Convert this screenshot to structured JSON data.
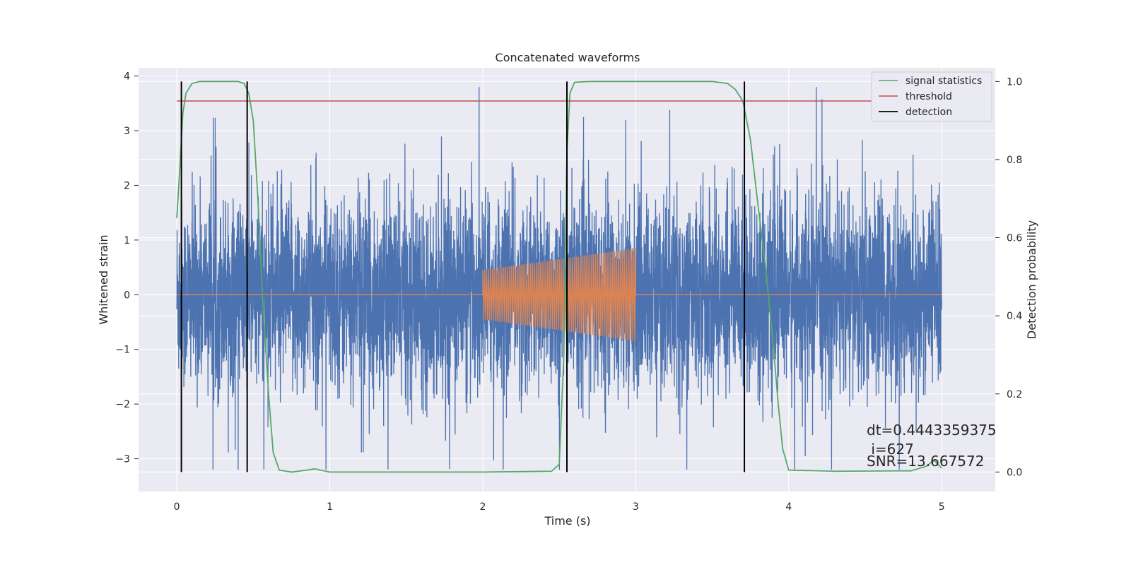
{
  "chart_data": {
    "type": "line",
    "title": "Concatenated waveforms",
    "xlabel": "Time (s)",
    "ylabel": "Whitened strain",
    "ylabel_right": "Detection probability",
    "xlim": [
      -0.25,
      5.35
    ],
    "ylim": [
      -3.6,
      4.15
    ],
    "ylim_right": [
      -0.05,
      1.035
    ],
    "x_ticks": [
      0,
      1,
      2,
      3,
      4,
      5
    ],
    "x_tick_labels": [
      "0",
      "1",
      "2",
      "3",
      "4",
      "5"
    ],
    "y_ticks": [
      -3,
      -2,
      -1,
      0,
      1,
      2,
      3,
      4
    ],
    "y_tick_labels": [
      "−3",
      "−2",
      "−1",
      "0",
      "1",
      "2",
      "3",
      "4"
    ],
    "y_right_ticks": [
      0.0,
      0.2,
      0.4,
      0.6,
      0.8,
      1.0
    ],
    "y_right_tick_labels": [
      "0.0",
      "0.2",
      "0.4",
      "0.6",
      "0.8",
      "1.0"
    ],
    "grid": true,
    "legend_position": "top-right",
    "colors": {
      "strain": "#4c72b0",
      "injected_signal": "#dd8452",
      "signal_statistics": "#55a868",
      "threshold": "#c44e52",
      "detection": "#000000",
      "plot_background": "#eaeaf2",
      "grid": "#ffffff"
    },
    "series": [
      {
        "name": "",
        "role": "whitened strain",
        "x_range": [
          0,
          5
        ],
        "y_range": [
          -3.2,
          3.8
        ],
        "typical_range": [
          -1.9,
          1.9
        ]
      },
      {
        "name": "",
        "role": "injected signal",
        "segments": [
          {
            "x": [
              0,
              2
            ],
            "y": [
              0,
              0
            ]
          },
          {
            "x": [
              2,
              3
            ],
            "amplitude_start": 0.45,
            "amplitude_end": 0.85
          },
          {
            "x": [
              3,
              5
            ],
            "y": [
              0,
              0
            ]
          }
        ]
      },
      {
        "name": "signal statistics",
        "axis": "right",
        "x": [
          0.0,
          0.02,
          0.04,
          0.06,
          0.1,
          0.15,
          0.2,
          0.3,
          0.4,
          0.44,
          0.47,
          0.5,
          0.53,
          0.56,
          0.6,
          0.63,
          0.67,
          0.75,
          0.85,
          0.9,
          1.0,
          1.5,
          2.0,
          2.45,
          2.5,
          2.53,
          2.55,
          2.57,
          2.6,
          2.7,
          3.0,
          3.5,
          3.6,
          3.65,
          3.7,
          3.75,
          3.8,
          3.85,
          3.9,
          3.93,
          3.96,
          4.0,
          4.3,
          4.8,
          4.9,
          4.95,
          5.0
        ],
        "y": [
          0.65,
          0.78,
          0.92,
          0.97,
          0.995,
          1.0,
          1.0,
          1.0,
          1.0,
          0.995,
          0.97,
          0.9,
          0.7,
          0.45,
          0.2,
          0.05,
          0.005,
          0.0,
          0.005,
          0.008,
          0.0,
          0.0,
          0.0,
          0.002,
          0.02,
          0.3,
          0.82,
          0.97,
          0.998,
          1.0,
          1.0,
          1.0,
          0.995,
          0.98,
          0.95,
          0.85,
          0.68,
          0.52,
          0.32,
          0.18,
          0.06,
          0.005,
          0.002,
          0.003,
          0.015,
          0.03,
          0.01
        ]
      },
      {
        "name": "threshold",
        "axis": "right",
        "x": [
          0,
          5
        ],
        "y": [
          0.95,
          0.95
        ]
      },
      {
        "name": "detection",
        "axis": "right",
        "x": [
          0.03,
          0.46,
          2.55,
          3.71
        ],
        "y_range": [
          0.0,
          1.0
        ]
      }
    ],
    "legend": [
      "signal statistics",
      "threshold",
      "detection"
    ],
    "annotation": {
      "line1": "dt=0.4443359375",
      "line2": " i=627",
      "line3": "SNR=13.667572",
      "x": 4.5,
      "y": 0.11
    }
  }
}
